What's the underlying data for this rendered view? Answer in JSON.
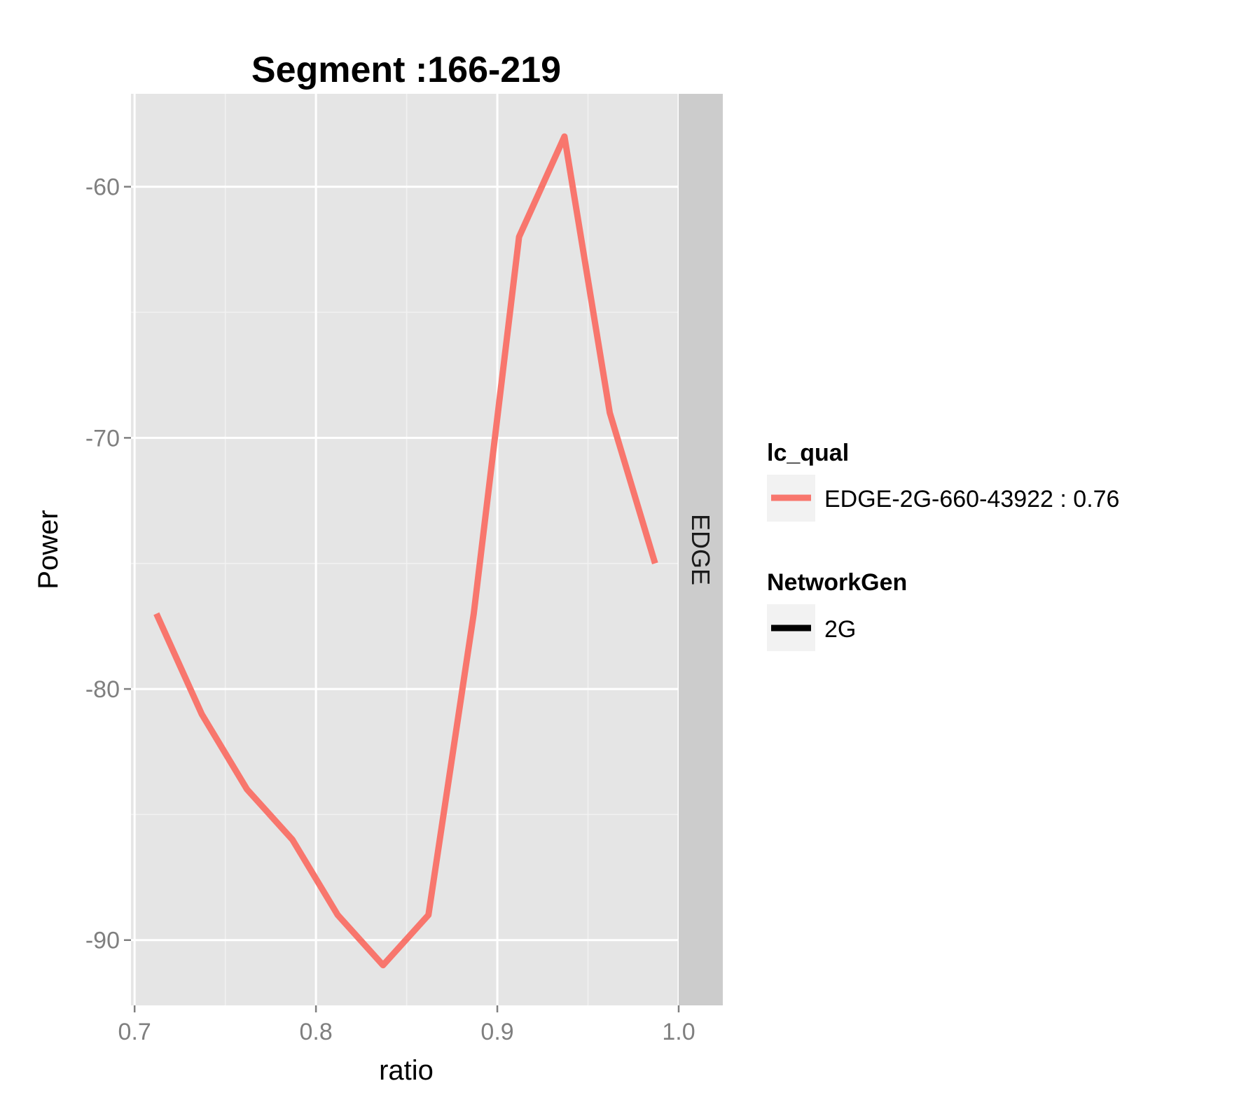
{
  "chart_data": {
    "type": "line",
    "title": "Segment :166-219",
    "xlabel": "ratio",
    "ylabel": "Power",
    "xlim": [
      0.698,
      1.0
    ],
    "ylim": [
      -92.6,
      -56.3
    ],
    "x_ticks": [
      "0.7",
      "0.8",
      "0.9",
      "1.0"
    ],
    "x_tick_values": [
      0.7,
      0.8,
      0.9,
      1.0
    ],
    "y_ticks": [
      "-60",
      "-70",
      "-80",
      "-90"
    ],
    "y_tick_values": [
      -60,
      -70,
      -80,
      -90
    ],
    "facet_label": "EDGE",
    "grid": true,
    "legend_position": "right",
    "series": [
      {
        "name": "EDGE-2G-660-43922 : 0.76",
        "color": "#F8766D",
        "x": [
          0.712,
          0.737,
          0.762,
          0.787,
          0.812,
          0.837,
          0.862,
          0.887,
          0.912,
          0.937,
          0.962,
          0.987
        ],
        "y": [
          -77,
          -81,
          -84,
          -86,
          -89,
          -91,
          -89,
          -77,
          -62,
          -58,
          -69,
          -75
        ]
      }
    ],
    "legends": [
      {
        "title": "lc_qual",
        "items": [
          {
            "label": "EDGE-2G-660-43922 : 0.76",
            "color": "#F8766D"
          }
        ]
      },
      {
        "title": "NetworkGen",
        "items": [
          {
            "label": "2G",
            "color": "#000000"
          }
        ]
      }
    ]
  }
}
